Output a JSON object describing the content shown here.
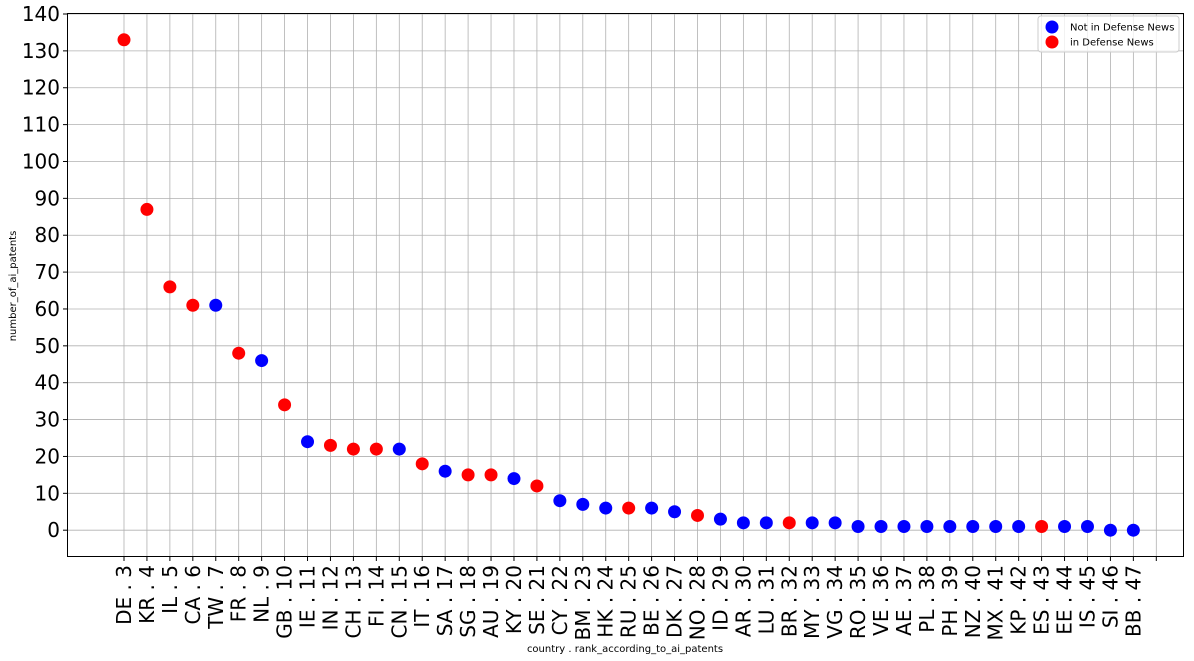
{
  "chart_data": {
    "type": "scatter",
    "xlabel": "country . rank_according_to_ai_patents",
    "ylabel": "number_of_ai_patents",
    "ylim": [
      -7,
      140
    ],
    "yticks": [
      0,
      10,
      20,
      30,
      40,
      50,
      60,
      70,
      80,
      90,
      100,
      110,
      120,
      130,
      140
    ],
    "grid": true,
    "legend_position": "top-right",
    "categories": [
      "DE . 3",
      "KR . 4",
      "IL . 5",
      "CA . 6",
      "TW . 7",
      "FR . 8",
      "NL . 9",
      "GB . 10",
      "IE . 11",
      "IN . 12",
      "CH . 13",
      "FI . 14",
      "CN . 15",
      "IT . 16",
      "SA . 17",
      "SG . 18",
      "AU . 19",
      "KY . 20",
      "SE . 21",
      "CY . 22",
      "BM . 23",
      "HK . 24",
      "RU . 25",
      "BE . 26",
      "DK . 27",
      "NO . 28",
      "ID . 29",
      "AR . 30",
      "LU . 31",
      "BR . 32",
      "MY . 33",
      "VG . 34",
      "RO . 35",
      "VE . 36",
      "AE . 37",
      "PL . 38",
      "PH . 39",
      "NZ . 40",
      "MX . 41",
      "KP . 42",
      "ES . 43",
      "EE . 44",
      "IS . 45",
      "SI . 46",
      "BB . 47"
    ],
    "values": [
      133,
      87,
      66,
      61,
      61,
      48,
      46,
      34,
      24,
      23,
      22,
      22,
      22,
      18,
      16,
      15,
      15,
      14,
      12,
      8,
      7,
      6,
      6,
      6,
      5,
      4,
      3,
      2,
      2,
      2,
      2,
      2,
      1,
      1,
      1,
      1,
      1,
      1,
      1,
      1,
      1,
      1,
      1,
      0,
      0
    ],
    "in_defense_news": [
      1,
      1,
      1,
      1,
      0,
      1,
      0,
      1,
      0,
      1,
      1,
      1,
      0,
      1,
      0,
      1,
      1,
      0,
      1,
      0,
      0,
      0,
      1,
      0,
      0,
      1,
      0,
      0,
      0,
      1,
      0,
      0,
      0,
      0,
      0,
      0,
      0,
      0,
      0,
      0,
      1,
      0,
      0,
      0,
      0
    ],
    "series": [
      {
        "name": "Not in Defense News",
        "color": "#0000ff"
      },
      {
        "name": "in Defense News",
        "color": "#ff0000"
      }
    ]
  }
}
